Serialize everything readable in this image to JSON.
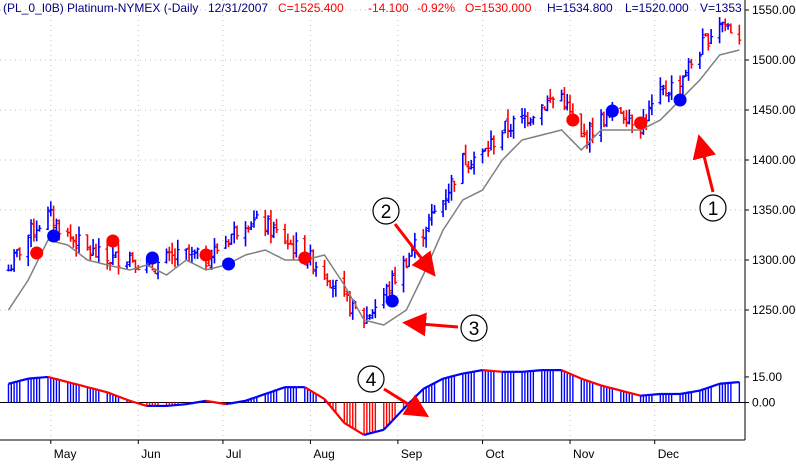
{
  "header": {
    "symbol": "(PL_0_I0B) Platinum-NYMEX (-Daily",
    "date": "12/31/2007",
    "close": "C=1525.400",
    "change": "-14.100",
    "change_pct": "-0.92%",
    "open": "O=1530.000",
    "high": "H=1534.800",
    "low": "L=1520.000",
    "volume": "V=1353"
  },
  "colors": {
    "up": "#0000ff",
    "down": "#ff0000",
    "stop_line": "#808080",
    "grid": "#c0c0c0",
    "header_text": "#000080",
    "header_values": "#ff0000",
    "annotation": "#ff0000"
  },
  "annotations": [
    "1",
    "2",
    "3",
    "4"
  ],
  "chart_data": [
    {
      "type": "ohlc",
      "series": [
        {
          "name": "Platinum-NYMEX (Daily)",
          "dates": [
            "2007-04-16",
            "2007-04-23",
            "2007-04-30",
            "2007-05-07",
            "2007-05-14",
            "2007-05-21",
            "2007-05-29",
            "2007-06-04",
            "2007-06-11",
            "2007-06-18",
            "2007-06-25",
            "2007-07-02",
            "2007-07-09",
            "2007-07-16",
            "2007-07-23",
            "2007-07-30",
            "2007-08-06",
            "2007-08-13",
            "2007-08-20",
            "2007-08-27",
            "2007-09-04",
            "2007-09-10",
            "2007-09-17",
            "2007-09-24",
            "2007-10-01",
            "2007-10-08",
            "2007-10-15",
            "2007-10-22",
            "2007-10-29",
            "2007-11-05",
            "2007-11-12",
            "2007-11-19",
            "2007-11-26",
            "2007-12-03",
            "2007-12-10",
            "2007-12-17",
            "2007-12-24",
            "2007-12-31"
          ],
          "close": [
            1290,
            1325,
            1345,
            1325,
            1310,
            1300,
            1305,
            1290,
            1300,
            1305,
            1300,
            1320,
            1340,
            1335,
            1320,
            1305,
            1290,
            1260,
            1240,
            1265,
            1300,
            1330,
            1360,
            1400,
            1405,
            1430,
            1440,
            1455,
            1465,
            1420,
            1440,
            1450,
            1435,
            1465,
            1480,
            1510,
            1540,
            1525
          ]
        }
      ],
      "trailing_stop": [
        1250,
        1280,
        1320,
        1315,
        1300,
        1295,
        1290,
        1295,
        1285,
        1300,
        1290,
        1295,
        1305,
        1310,
        1300,
        1300,
        1305,
        1275,
        1240,
        1235,
        1250,
        1285,
        1330,
        1360,
        1370,
        1400,
        1420,
        1425,
        1430,
        1410,
        1430,
        1430,
        1430,
        1440,
        1460,
        1480,
        1505,
        1510
      ],
      "signals": [
        {
          "date": "2007-04-26",
          "price": 1307,
          "kind": "sell"
        },
        {
          "date": "2007-05-02",
          "price": 1324,
          "kind": "buy"
        },
        {
          "date": "2007-05-23",
          "price": 1319,
          "kind": "sell"
        },
        {
          "date": "2007-06-06",
          "price": 1302,
          "kind": "buy"
        },
        {
          "date": "2007-06-25",
          "price": 1305,
          "kind": "sell"
        },
        {
          "date": "2007-07-03",
          "price": 1296,
          "kind": "buy"
        },
        {
          "date": "2007-07-30",
          "price": 1302,
          "kind": "sell"
        },
        {
          "date": "2007-08-30",
          "price": 1259,
          "kind": "buy"
        },
        {
          "date": "2007-11-02",
          "price": 1440,
          "kind": "sell"
        },
        {
          "date": "2007-11-16",
          "price": 1449,
          "kind": "buy"
        },
        {
          "date": "2007-11-26",
          "price": 1437,
          "kind": "sell"
        },
        {
          "date": "2007-12-10",
          "price": 1460,
          "kind": "buy"
        }
      ],
      "ylim": [
        1200,
        1560
      ],
      "y_ticks": [
        "1250.000",
        "1300.000",
        "1350.000",
        "1400.000",
        "1450.000",
        "1500.000",
        "1550.000"
      ],
      "x_ticks": [
        "May",
        "Jun",
        "Jul",
        "Aug",
        "Sep",
        "Oct",
        "Nov",
        "Dec"
      ],
      "grid": true
    },
    {
      "type": "histogram",
      "dates": [
        "2007-04-16",
        "2007-04-23",
        "2007-04-30",
        "2007-05-07",
        "2007-05-14",
        "2007-05-21",
        "2007-05-29",
        "2007-06-04",
        "2007-06-11",
        "2007-06-18",
        "2007-06-25",
        "2007-07-02",
        "2007-07-09",
        "2007-07-16",
        "2007-07-23",
        "2007-07-30",
        "2007-08-06",
        "2007-08-13",
        "2007-08-20",
        "2007-08-27",
        "2007-09-04",
        "2007-09-10",
        "2007-09-17",
        "2007-09-24",
        "2007-10-01",
        "2007-10-08",
        "2007-10-15",
        "2007-10-22",
        "2007-10-29",
        "2007-11-05",
        "2007-11-12",
        "2007-11-19",
        "2007-11-26",
        "2007-12-03",
        "2007-12-10",
        "2007-12-17",
        "2007-12-24",
        "2007-12-31"
      ],
      "values": [
        11,
        14,
        15,
        12,
        9,
        6,
        1,
        -2,
        -2,
        -1,
        1,
        -1,
        1,
        5,
        9,
        9,
        2,
        -12,
        -19,
        -16,
        -2,
        8,
        14,
        17,
        19,
        18,
        18,
        19,
        19,
        14,
        10,
        7,
        4,
        5,
        5,
        7,
        11,
        12
      ],
      "y_ticks": [
        "0.00",
        "15.00"
      ],
      "ylim": [
        -22,
        22
      ]
    }
  ]
}
